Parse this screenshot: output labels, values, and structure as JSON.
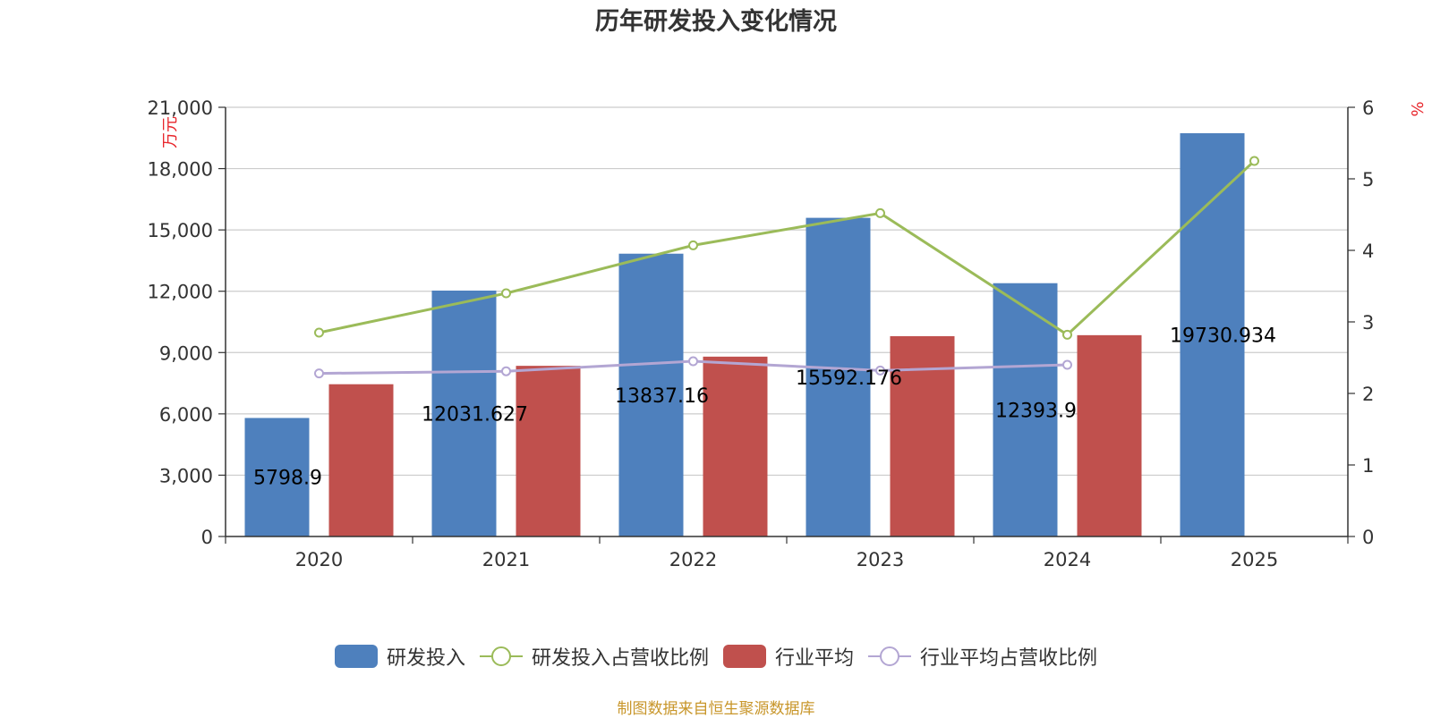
{
  "title": "历年研发投入变化情况",
  "source": "制图数据来自恒生聚源数据库",
  "colors": {
    "rd_invest": "#4e80bd",
    "industry_avg": "#c0504d",
    "rd_ratio": "#9bbb59",
    "industry_ratio": "#b3a6d3"
  },
  "legend": [
    {
      "key": "rd_invest",
      "label": "研发投入",
      "kind": "bar"
    },
    {
      "key": "rd_ratio",
      "label": "研发投入占营收比例",
      "kind": "line"
    },
    {
      "key": "industry_avg",
      "label": "行业平均",
      "kind": "bar"
    },
    {
      "key": "industry_ratio",
      "label": "行业平均占营收比例",
      "kind": "line"
    }
  ],
  "chart_data": {
    "type": "bar",
    "title": "历年研发投入变化情况",
    "categories": [
      "2020",
      "2021",
      "2022",
      "2023",
      "2024",
      "2025"
    ],
    "y_left": {
      "label": "万元",
      "ylim": [
        0,
        21000
      ],
      "ticks": [
        0,
        3000,
        6000,
        9000,
        12000,
        15000,
        18000,
        21000
      ],
      "tick_labels": [
        "0",
        "3,000",
        "6,000",
        "9,000",
        "12,000",
        "15,000",
        "18,000",
        "21,000"
      ]
    },
    "y_right": {
      "label": "%",
      "ylim": [
        0,
        6
      ],
      "ticks": [
        0,
        1,
        2,
        3,
        4,
        5,
        6
      ],
      "tick_labels": [
        "0",
        "1",
        "2",
        "3",
        "4",
        "5",
        "6"
      ]
    },
    "grid": true,
    "legend_position": "bottom",
    "series": [
      {
        "key": "rd_invest",
        "name": "研发投入",
        "type": "bar",
        "axis": "left",
        "values": [
          5798.9,
          12031.627,
          13837.16,
          15592.176,
          12393.9,
          19730.934
        ],
        "labels": [
          "5798.9",
          "12031.627",
          "13837.16",
          "15592.176",
          "12393.9",
          "19730.934"
        ]
      },
      {
        "key": "industry_avg",
        "name": "行业平均",
        "type": "bar",
        "axis": "left",
        "values": [
          7450,
          8350,
          8800,
          9800,
          9850,
          null
        ]
      },
      {
        "key": "rd_ratio",
        "name": "研发投入占营收比例",
        "type": "line",
        "axis": "right",
        "values": [
          2.85,
          3.4,
          4.07,
          4.52,
          2.82,
          5.25
        ]
      },
      {
        "key": "industry_ratio",
        "name": "行业平均占营收比例",
        "type": "line",
        "axis": "right",
        "values": [
          2.28,
          2.31,
          2.45,
          2.32,
          2.4,
          null
        ]
      }
    ]
  }
}
